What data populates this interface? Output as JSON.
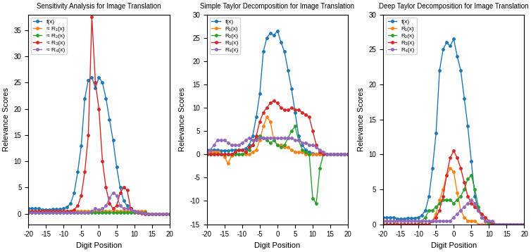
{
  "chart_data": [
    {
      "type": "line",
      "title": "Sensitivity Analysis for Image Translation",
      "xlabel": "Digit Position",
      "ylabel": "Relevance Scores",
      "x": [
        -20,
        -19,
        -18,
        -17,
        -16,
        -15,
        -14,
        -13,
        -12,
        -11,
        -10,
        -9,
        -8,
        -7,
        -6,
        -5,
        -4,
        -3,
        -2,
        -1,
        0,
        1,
        2,
        3,
        4,
        5,
        6,
        7,
        8,
        9,
        10,
        11,
        12,
        13,
        14,
        15,
        16,
        17,
        18,
        19,
        20
      ],
      "xlim": [
        -20,
        20
      ],
      "xticks": [
        -20,
        -15,
        -10,
        -5,
        0,
        5,
        10,
        15,
        20
      ],
      "ylim": [
        -2,
        38
      ],
      "yticks": [
        0,
        5,
        10,
        15,
        20,
        25,
        30,
        35
      ],
      "legend": "upper left",
      "series": [
        {
          "name": "f(x)",
          "color": "#1f77b4",
          "marker": "o",
          "values": [
            1.0,
            1.0,
            1.0,
            1.0,
            0.8,
            0.8,
            0.8,
            0.9,
            0.9,
            0.9,
            1.0,
            1.3,
            2.0,
            4.0,
            8.0,
            13.0,
            22.0,
            25.5,
            26.0,
            24.0,
            26.0,
            25.0,
            22.0,
            18.0,
            14.0,
            9.0,
            5.0,
            2.5,
            1.5,
            1.0,
            0.5,
            0.3,
            0.2,
            0.1,
            0.0,
            0.0,
            0.0,
            0.0,
            0.0,
            0.0,
            0.0
          ]
        },
        {
          "name": "≈ R₁(x)",
          "color": "#ff7f0e",
          "marker": "o",
          "values": [
            0.5,
            0.5,
            0.5,
            0.5,
            0.5,
            0.5,
            0.5,
            0.5,
            0.5,
            0.5,
            0.5,
            0.5,
            0.5,
            0.5,
            0.5,
            0.5,
            0.5,
            0.5,
            0.5,
            0.5,
            0.5,
            0.5,
            0.5,
            0.5,
            0.5,
            0.5,
            0.5,
            0.5,
            0.5,
            0.5,
            0.5,
            0.5,
            0.5,
            0.5,
            0.0,
            0.0,
            0.0,
            0.0,
            0.0,
            0.0,
            0.0
          ]
        },
        {
          "name": "≈ R₂(x)",
          "color": "#2ca02c",
          "marker": "o",
          "values": [
            0.2,
            0.2,
            0.2,
            0.2,
            0.2,
            0.2,
            0.2,
            0.2,
            0.2,
            0.2,
            0.2,
            0.2,
            0.2,
            0.2,
            0.2,
            0.2,
            0.2,
            0.2,
            0.2,
            0.2,
            0.2,
            0.2,
            0.2,
            0.2,
            0.2,
            0.2,
            0.2,
            0.2,
            0.2,
            0.2,
            0.2,
            0.2,
            0.2,
            0.2,
            0.0,
            0.0,
            0.0,
            0.0,
            0.0,
            0.0,
            0.0
          ]
        },
        {
          "name": "≈ R₃(x)",
          "color": "#d62728",
          "marker": "o",
          "values": [
            0.5,
            0.5,
            0.5,
            0.5,
            0.5,
            0.5,
            0.5,
            0.5,
            0.5,
            0.5,
            0.5,
            0.5,
            0.5,
            0.8,
            1.5,
            3.5,
            8.0,
            15.0,
            37.5,
            25.0,
            20.0,
            10.0,
            5.0,
            2.0,
            1.0,
            1.5,
            4.0,
            5.0,
            4.5,
            1.0,
            0.5,
            0.2,
            0.1,
            0.0,
            0.0,
            0.0,
            0.0,
            0.0,
            0.0,
            0.0,
            0.0
          ]
        },
        {
          "name": "≈ R₄(x)",
          "color": "#9467bd",
          "marker": "o",
          "values": [
            0.2,
            0.2,
            0.2,
            0.2,
            0.2,
            0.2,
            0.2,
            0.2,
            0.2,
            0.2,
            0.2,
            0.2,
            0.2,
            0.2,
            0.2,
            0.2,
            0.2,
            0.2,
            0.5,
            1.0,
            0.8,
            1.0,
            1.5,
            3.0,
            4.0,
            3.5,
            1.5,
            1.0,
            1.0,
            0.8,
            0.5,
            0.3,
            0.2,
            0.1,
            0.0,
            0.0,
            0.0,
            0.0,
            0.0,
            0.0,
            0.0
          ]
        }
      ]
    },
    {
      "type": "line",
      "title": "Simple Taylor Decomposition for Image Translation",
      "xlabel": "Digit Position",
      "ylabel": "Relevance Scores",
      "x": [
        -20,
        -19,
        -18,
        -17,
        -16,
        -15,
        -14,
        -13,
        -12,
        -11,
        -10,
        -9,
        -8,
        -7,
        -6,
        -5,
        -4,
        -3,
        -2,
        -1,
        0,
        1,
        2,
        3,
        4,
        5,
        6,
        7,
        8,
        9,
        10,
        11,
        12,
        13,
        14,
        15,
        16,
        17,
        18,
        19,
        20
      ],
      "xlim": [
        -20,
        20
      ],
      "xticks": [
        -20,
        -15,
        -10,
        -5,
        0,
        5,
        10,
        15,
        20
      ],
      "ylim": [
        -15,
        30
      ],
      "yticks": [
        -15,
        -10,
        -5,
        0,
        5,
        10,
        15,
        20,
        25,
        30
      ],
      "legend": "upper left",
      "series": [
        {
          "name": "f(x)",
          "color": "#1f77b4",
          "marker": "o",
          "values": [
            1.0,
            1.0,
            1.0,
            1.0,
            0.8,
            0.8,
            0.8,
            0.9,
            0.9,
            0.9,
            1.0,
            1.3,
            2.0,
            4.0,
            8.0,
            13.0,
            22.0,
            25.0,
            26.0,
            25.5,
            26.5,
            24.0,
            22.0,
            18.0,
            14.0,
            9.0,
            4.0,
            2.0,
            1.0,
            0.5,
            0.2,
            0.1,
            0.0,
            0.0,
            0.0,
            0.0,
            0.0,
            0.0,
            0.0,
            0.0,
            0.0
          ]
        },
        {
          "name": "R₁(x)",
          "color": "#ff7f0e",
          "marker": "o",
          "values": [
            0.5,
            0.5,
            0.5,
            0.5,
            0.0,
            -0.5,
            -2.0,
            -0.3,
            0.0,
            0.0,
            0.0,
            0.0,
            0.0,
            0.5,
            1.0,
            3.0,
            6.0,
            8.0,
            7.0,
            3.0,
            2.0,
            2.0,
            1.5,
            1.5,
            1.0,
            0.5,
            0.5,
            0.5,
            0.0,
            0.0,
            0.0,
            0.0,
            0.0,
            0.0,
            0.0,
            0.0,
            0.0,
            0.0,
            0.0,
            0.0,
            0.0
          ]
        },
        {
          "name": "R₂(x)",
          "color": "#2ca02c",
          "marker": "o",
          "values": [
            0.0,
            0.0,
            0.0,
            0.0,
            0.0,
            0.0,
            0.0,
            0.0,
            0.0,
            0.0,
            0.0,
            0.5,
            1.0,
            2.0,
            3.5,
            4.0,
            3.5,
            3.0,
            2.5,
            3.0,
            2.0,
            1.5,
            2.0,
            3.5,
            5.0,
            6.0,
            3.0,
            1.0,
            0.5,
            0.0,
            -9.5,
            -10.5,
            -3.0,
            0.0,
            0.0,
            0.0,
            0.0,
            0.0,
            0.0,
            0.0,
            0.0
          ]
        },
        {
          "name": "R₃(x)",
          "color": "#d62728",
          "marker": "o",
          "values": [
            0.0,
            0.0,
            0.0,
            0.0,
            0.0,
            0.0,
            0.0,
            0.0,
            0.5,
            1.0,
            1.0,
            0.5,
            1.5,
            2.0,
            4.0,
            7.0,
            9.0,
            10.0,
            11.0,
            11.5,
            11.0,
            10.0,
            9.5,
            9.5,
            10.0,
            9.5,
            9.5,
            9.0,
            8.5,
            8.0,
            5.0,
            2.0,
            0.5,
            0.0,
            0.0,
            0.0,
            0.0,
            0.0,
            0.0,
            0.0,
            0.0
          ]
        },
        {
          "name": "R₄(x)",
          "color": "#9467bd",
          "marker": "o",
          "values": [
            0.5,
            1.0,
            2.0,
            3.0,
            3.0,
            3.0,
            2.5,
            2.0,
            2.0,
            2.0,
            2.5,
            3.0,
            3.5,
            3.0,
            3.0,
            3.5,
            3.5,
            3.5,
            3.5,
            3.5,
            3.5,
            3.5,
            3.5,
            3.5,
            3.5,
            3.0,
            3.0,
            2.5,
            2.5,
            2.0,
            2.0,
            1.5,
            1.0,
            0.5,
            0.0,
            0.0,
            0.0,
            0.0,
            0.0,
            0.0,
            0.0
          ]
        }
      ]
    },
    {
      "type": "line",
      "title": "Deep Taylor Decomposition for Image Translation",
      "xlabel": "Digit Position",
      "ylabel": "Relevance Scores",
      "x": [
        -20,
        -19,
        -18,
        -17,
        -16,
        -15,
        -14,
        -13,
        -12,
        -11,
        -10,
        -9,
        -8,
        -7,
        -6,
        -5,
        -4,
        -3,
        -2,
        -1,
        0,
        1,
        2,
        3,
        4,
        5,
        6,
        7,
        8,
        9,
        10,
        11,
        12,
        13,
        14,
        15,
        16,
        17,
        18,
        19,
        20
      ],
      "xlim": [
        -20,
        20
      ],
      "xticks": [
        -20,
        -15,
        -10,
        -5,
        0,
        5,
        10,
        15,
        20
      ],
      "ylim": [
        0,
        30
      ],
      "yticks": [
        0,
        5,
        10,
        15,
        20,
        25,
        30
      ],
      "legend": "upper left",
      "series": [
        {
          "name": "f(x)",
          "color": "#1f77b4",
          "marker": "o",
          "values": [
            1.0,
            1.0,
            1.0,
            1.0,
            0.8,
            0.8,
            0.8,
            0.9,
            0.9,
            0.9,
            1.0,
            1.3,
            2.0,
            4.0,
            8.0,
            13.0,
            22.0,
            25.0,
            26.0,
            25.5,
            26.5,
            24.0,
            22.0,
            18.0,
            14.0,
            9.0,
            4.0,
            2.0,
            1.0,
            0.5,
            0.2,
            0.1,
            0.0,
            0.0,
            0.0,
            0.0,
            0.0,
            0.0,
            0.0,
            0.0,
            0.0
          ]
        },
        {
          "name": "R₁(x)",
          "color": "#ff7f0e",
          "marker": "o",
          "values": [
            0.5,
            0.5,
            0.5,
            0.5,
            0.0,
            0.0,
            0.0,
            0.0,
            0.0,
            0.0,
            0.0,
            0.0,
            0.0,
            0.0,
            0.5,
            1.5,
            3.5,
            5.0,
            7.0,
            8.0,
            7.5,
            4.5,
            2.0,
            1.0,
            0.5,
            0.5,
            0.5,
            0.0,
            0.0,
            0.0,
            0.0,
            0.0,
            0.0,
            0.0,
            0.0,
            0.0,
            0.0,
            0.0,
            0.0,
            0.0,
            0.0
          ]
        },
        {
          "name": "R₂(x)",
          "color": "#2ca02c",
          "marker": "o",
          "values": [
            0.0,
            0.0,
            0.0,
            0.0,
            0.0,
            0.0,
            0.0,
            0.0,
            0.0,
            0.0,
            0.0,
            0.5,
            1.0,
            2.0,
            2.0,
            2.5,
            3.0,
            3.5,
            3.5,
            3.5,
            3.0,
            3.5,
            4.0,
            5.0,
            6.5,
            7.0,
            5.0,
            2.5,
            1.0,
            0.5,
            0.0,
            0.0,
            0.0,
            0.0,
            0.0,
            0.0,
            0.0,
            0.0,
            0.0,
            0.0,
            0.0
          ]
        },
        {
          "name": "R₃(x)",
          "color": "#d62728",
          "marker": "o",
          "values": [
            0.0,
            0.0,
            0.0,
            0.0,
            0.0,
            0.0,
            0.0,
            0.0,
            0.0,
            0.0,
            0.0,
            0.0,
            0.0,
            0.0,
            0.5,
            1.0,
            2.0,
            4.0,
            7.0,
            9.5,
            10.5,
            9.5,
            8.0,
            6.0,
            4.0,
            3.0,
            2.5,
            2.0,
            1.5,
            1.0,
            0.5,
            0.0,
            0.0,
            0.0,
            0.0,
            0.0,
            0.0,
            0.0,
            0.0,
            0.0,
            0.0
          ]
        },
        {
          "name": "R₄(x)",
          "color": "#9467bd",
          "marker": "o",
          "values": [
            0.5,
            0.5,
            0.5,
            0.5,
            0.5,
            0.5,
            0.5,
            0.5,
            0.5,
            0.5,
            0.5,
            0.5,
            0.5,
            0.5,
            0.5,
            0.5,
            0.5,
            0.5,
            0.5,
            0.5,
            1.0,
            1.5,
            2.0,
            2.5,
            3.0,
            3.5,
            3.0,
            2.0,
            1.0,
            0.5,
            0.5,
            0.5,
            0.0,
            0.0,
            0.0,
            0.0,
            0.0,
            0.0,
            0.0,
            0.0,
            0.0
          ]
        }
      ]
    }
  ]
}
